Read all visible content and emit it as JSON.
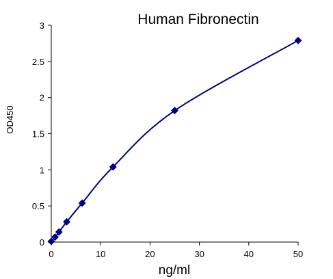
{
  "chart_data": {
    "type": "scatter",
    "title": "Human  Fibronectin",
    "xlabel": "ng/ml",
    "ylabel": "OD450",
    "xlim": [
      0,
      50
    ],
    "ylim": [
      0,
      3
    ],
    "xticks": [
      0,
      10,
      20,
      30,
      40,
      50
    ],
    "yticks": [
      0,
      0.5,
      1,
      1.5,
      2,
      2.5,
      3
    ],
    "ytick_labels": [
      "0",
      "0.5",
      "1",
      "1.5",
      "2",
      "2.5",
      "3"
    ],
    "grid": false,
    "legend": "none",
    "series": [
      {
        "x": [
          0,
          0.78,
          1.56,
          3.125,
          6.25,
          12.5,
          25,
          50
        ],
        "y": [
          0.01,
          0.07,
          0.14,
          0.28,
          0.54,
          1.04,
          1.82,
          2.79
        ],
        "color": "#000080",
        "marker": "diamond",
        "fit_line": true
      }
    ]
  }
}
